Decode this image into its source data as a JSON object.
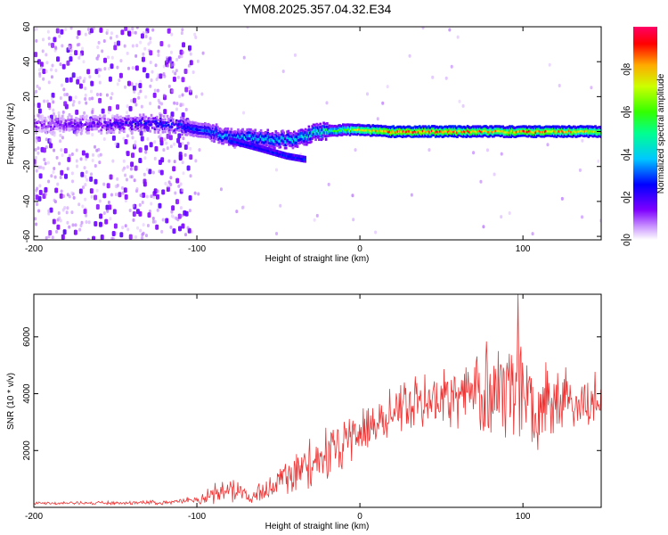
{
  "title": "YM08.2025.357.04.32.E34",
  "chart_data": [
    {
      "type": "heatmap",
      "xlabel": "Height of straight line (km)",
      "ylabel": "Frequency (Hz)",
      "xlim": [
        -200,
        148
      ],
      "ylim": [
        -62,
        60
      ],
      "xticks": [
        -200,
        -100,
        0,
        100
      ],
      "xtick_labels": [
        "-200",
        "-100",
        "0",
        "100"
      ],
      "yticks": [
        -60,
        -40,
        -20,
        0,
        20,
        40,
        60
      ],
      "ytick_labels": [
        "-60",
        "-40",
        "-20",
        "0",
        "20",
        "40",
        "60"
      ],
      "colorbar": {
        "label": "Normalized spectral amplitude",
        "range": [
          0,
          1
        ],
        "ticks": [
          0.0,
          0.2,
          0.4,
          0.6,
          0.8
        ],
        "tick_labels": [
          "0.0",
          "0.2",
          "0.4",
          "0.6",
          "0.8"
        ]
      },
      "ridge": [
        {
          "x": -200,
          "f": 4,
          "amp": 0.15
        },
        {
          "x": -160,
          "f": 4,
          "amp": 0.2
        },
        {
          "x": -130,
          "f": 5,
          "amp": 0.28
        },
        {
          "x": -100,
          "f": 2,
          "amp": 0.32
        },
        {
          "x": -80,
          "f": -3,
          "amp": 0.4
        },
        {
          "x": -60,
          "f": -4,
          "amp": 0.42
        },
        {
          "x": -40,
          "f": -5,
          "amp": 0.45
        },
        {
          "x": -25,
          "f": 0,
          "amp": 0.5
        },
        {
          "x": -10,
          "f": 1,
          "amp": 0.62
        },
        {
          "x": 0,
          "f": 1,
          "amp": 0.78
        },
        {
          "x": 20,
          "f": 0,
          "amp": 0.95
        },
        {
          "x": 50,
          "f": 0,
          "amp": 0.97
        },
        {
          "x": 80,
          "f": 0,
          "amp": 0.85
        },
        {
          "x": 110,
          "f": 0,
          "amp": 0.92
        },
        {
          "x": 148,
          "f": 0,
          "amp": 0.8
        }
      ],
      "branch": [
        {
          "x": -80,
          "f": -5
        },
        {
          "x": -60,
          "f": -10
        },
        {
          "x": -45,
          "f": -14
        },
        {
          "x": -33,
          "f": -16
        }
      ]
    },
    {
      "type": "line",
      "xlabel": "Height of straight line (km)",
      "ylabel": "SNR (10 * v/v)",
      "xlim": [
        -200,
        148
      ],
      "ylim": [
        0,
        7500
      ],
      "xticks": [
        -200,
        -100,
        0,
        100
      ],
      "xtick_labels": [
        "-200",
        "-100",
        "0",
        "100"
      ],
      "yticks": [
        2000,
        4000,
        6000
      ],
      "ytick_labels": [
        "2000",
        "4000",
        "6000"
      ],
      "color": "#ee3333",
      "envelope": [
        {
          "x": -200,
          "mean": 150,
          "spread": 60
        },
        {
          "x": -120,
          "mean": 170,
          "spread": 70
        },
        {
          "x": -100,
          "mean": 250,
          "spread": 150
        },
        {
          "x": -80,
          "mean": 700,
          "spread": 500
        },
        {
          "x": -65,
          "mean": 350,
          "spread": 250
        },
        {
          "x": -50,
          "mean": 900,
          "spread": 650
        },
        {
          "x": -30,
          "mean": 1500,
          "spread": 900
        },
        {
          "x": -10,
          "mean": 2300,
          "spread": 900
        },
        {
          "x": 10,
          "mean": 3000,
          "spread": 900
        },
        {
          "x": 30,
          "mean": 3600,
          "spread": 1000
        },
        {
          "x": 50,
          "mean": 3900,
          "spread": 1200
        },
        {
          "x": 70,
          "mean": 4000,
          "spread": 1600
        },
        {
          "x": 90,
          "mean": 4200,
          "spread": 2000
        },
        {
          "x": 110,
          "mean": 3800,
          "spread": 1600
        },
        {
          "x": 130,
          "mean": 3700,
          "spread": 1100
        },
        {
          "x": 148,
          "mean": 3800,
          "spread": 1000
        }
      ],
      "peak": {
        "x": 97,
        "y": 7500
      }
    }
  ]
}
